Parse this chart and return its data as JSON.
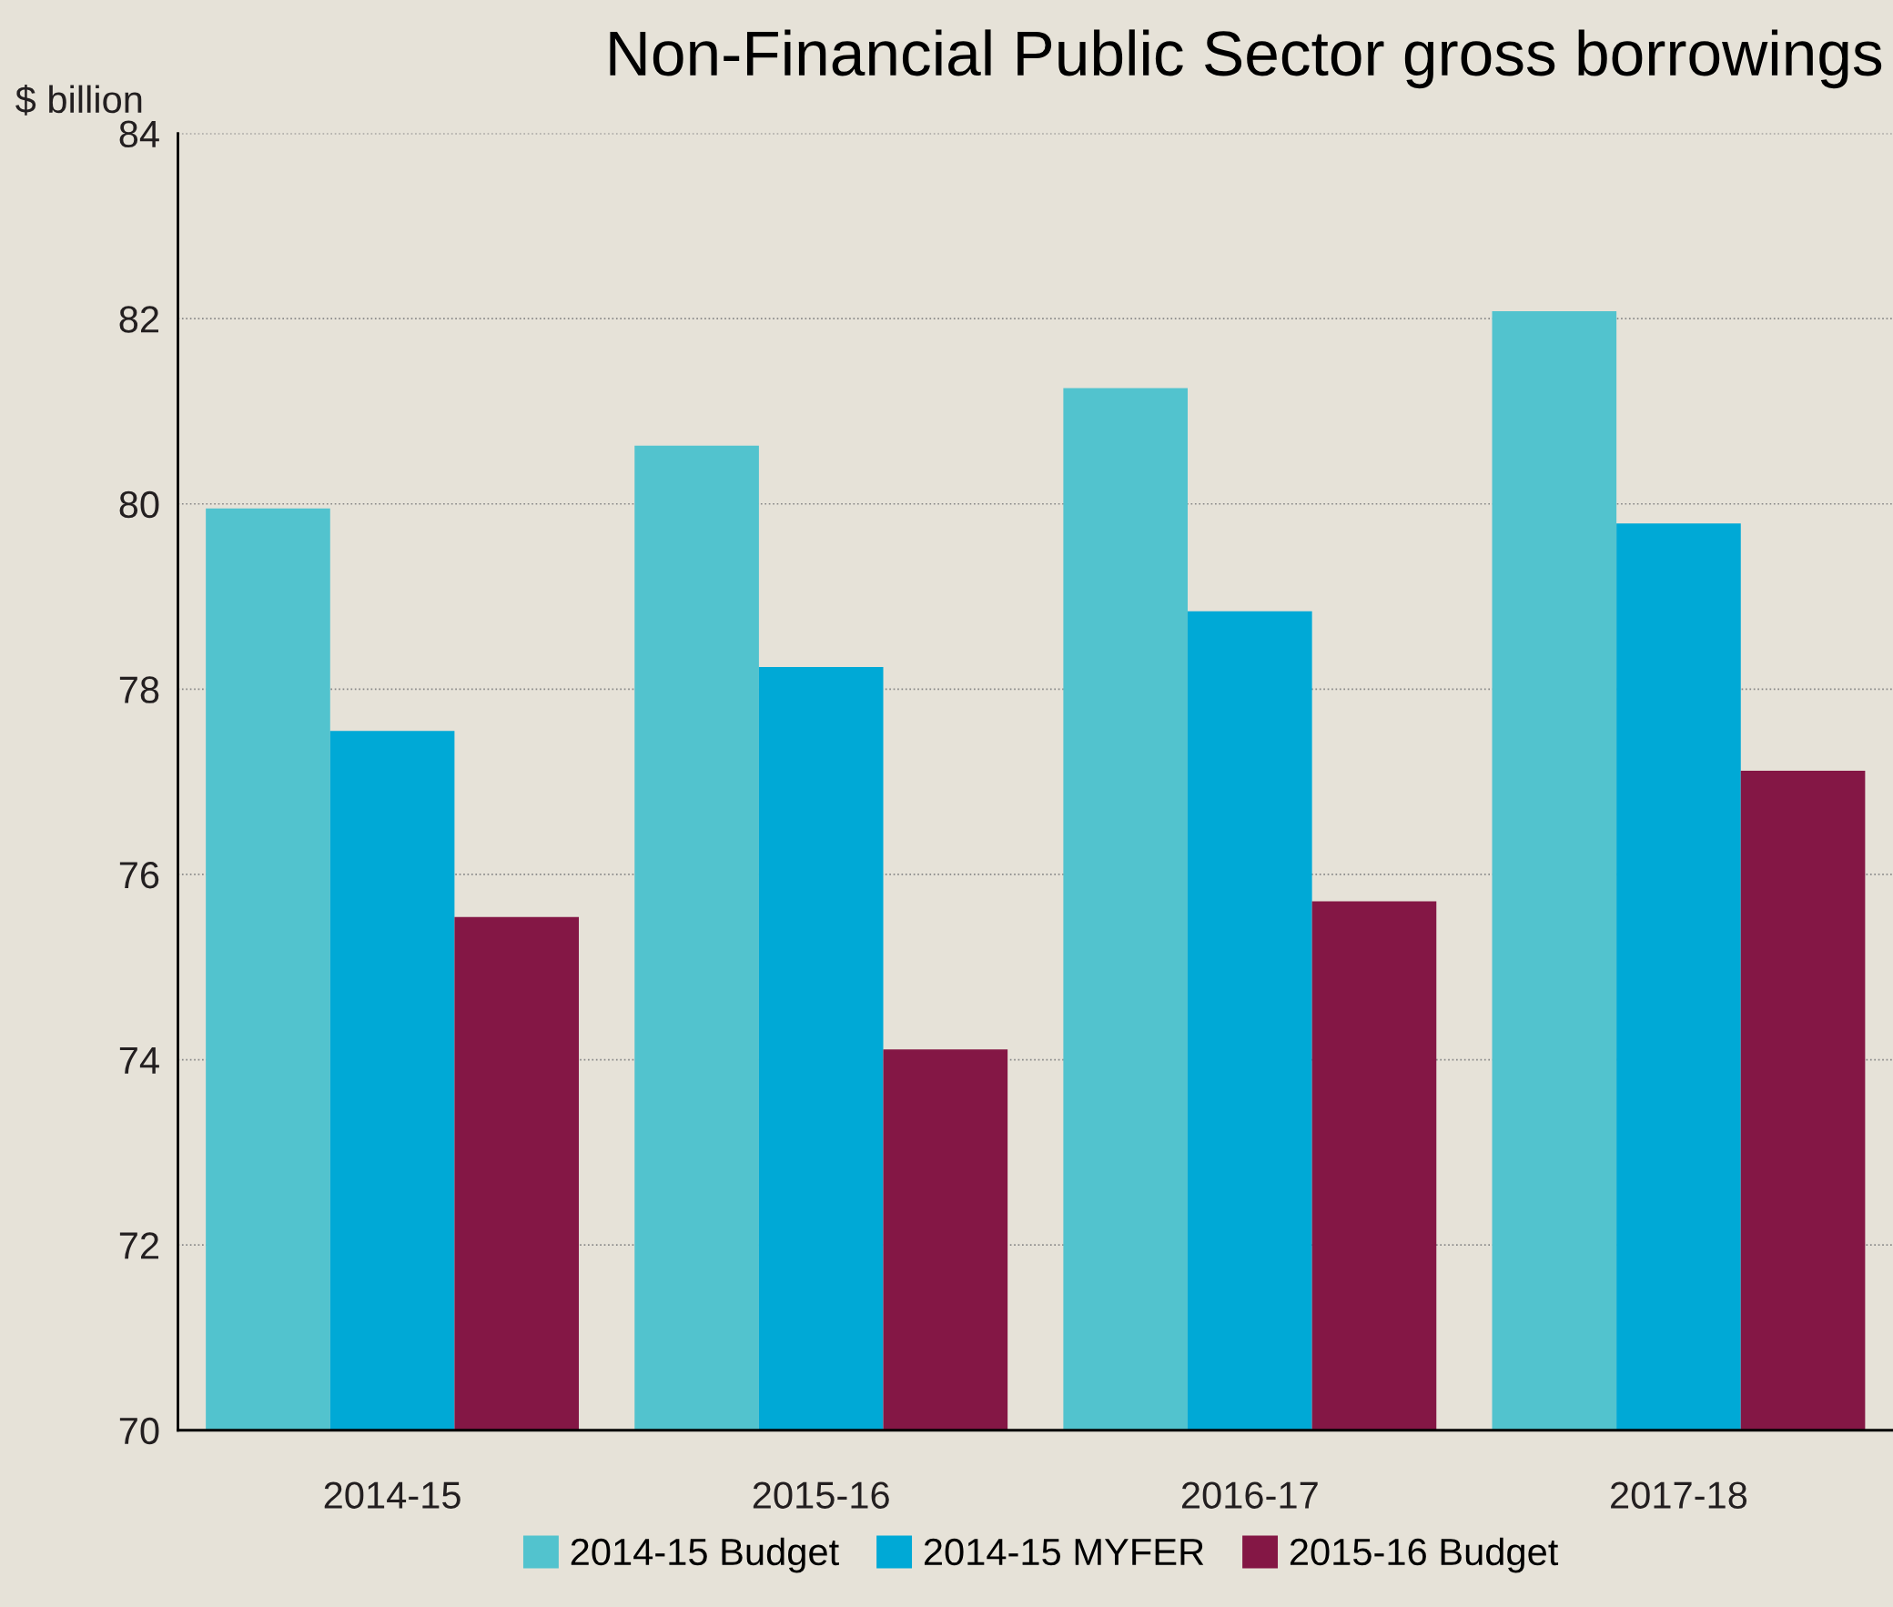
{
  "chart_data": {
    "type": "bar",
    "title": "Non-Financial Public Sector gross borrowings",
    "ylabel": "$ billion",
    "categories": [
      "2014-15",
      "2015-16",
      "2016-17",
      "2017-18"
    ],
    "series": [
      {
        "name": "2014-15 Budget",
        "color": "#52c3ce",
        "values": [
          79.95,
          80.63,
          81.25,
          82.08
        ]
      },
      {
        "name": "2014-15 MYFER",
        "color": "#00a9d6",
        "values": [
          77.55,
          78.24,
          78.84,
          79.79
        ]
      },
      {
        "name": "2015-16 Budget",
        "color": "#841745",
        "values": [
          75.54,
          74.11,
          75.71,
          77.12
        ]
      }
    ],
    "ylim": [
      70,
      84
    ],
    "yticks": [
      70,
      72,
      74,
      76,
      78,
      80,
      82,
      84
    ],
    "grid": "y",
    "legend": "bottom"
  }
}
